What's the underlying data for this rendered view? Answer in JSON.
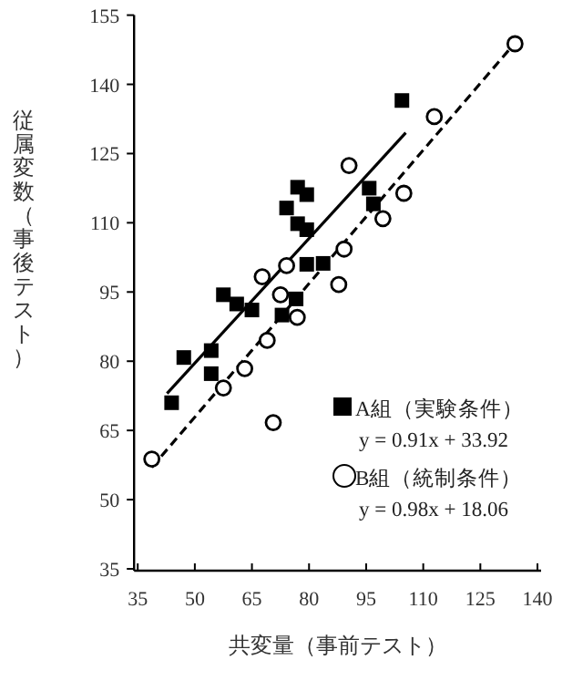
{
  "chart_data": {
    "type": "scatter",
    "xlabel": "共変量（事前テスト）",
    "ylabel": "従属変数（事後テスト）",
    "xlim": [
      35,
      140
    ],
    "xticks": [
      35,
      50,
      65,
      80,
      95,
      110,
      125,
      140
    ],
    "ylim": [
      35,
      155
    ],
    "yticks": [
      35,
      50,
      65,
      80,
      95,
      110,
      125,
      140,
      155
    ],
    "grid": false,
    "legend": "bottom right",
    "annotations": [
      "y = 0.91x + 33.92",
      "y = 0.98x + 18.06"
    ],
    "series": [
      {
        "name": "A組（実験条件）",
        "type": "scatter",
        "marker": "square",
        "color": "#000000",
        "x": [
          43.9,
          47.1,
          54.3,
          54.3,
          57.5,
          61.0,
          65.0,
          72.9,
          76.6,
          74.1,
          77.0,
          79.4,
          77.0,
          79.4,
          79.4,
          83.7,
          104.4,
          95.8,
          96.9
        ],
        "values": [
          71.0,
          80.8,
          82.3,
          77.3,
          94.4,
          92.4,
          91.1,
          90.0,
          93.5,
          113.2,
          117.7,
          116.1,
          109.8,
          108.5,
          101.0,
          101.2,
          136.5,
          117.5,
          114.1
        ]
      },
      {
        "name": "B組（統制条件）",
        "type": "scatter",
        "marker": "circle",
        "color": "#000000",
        "x": [
          38.7,
          57.5,
          63.1,
          69.0,
          70.6,
          72.5,
          76.9,
          67.7,
          87.8,
          74.1,
          90.5,
          89.2,
          134.1,
          112.9,
          104.9,
          99.4
        ],
        "values": [
          58.8,
          74.2,
          78.4,
          84.5,
          66.7,
          94.4,
          89.5,
          98.3,
          96.6,
          100.7,
          122.4,
          104.3,
          148.8,
          133.0,
          116.4,
          110.9
        ]
      },
      {
        "type": "line",
        "line_style": "solid",
        "color": "#000000",
        "x": [
          42.7,
          105.4
        ],
        "values": [
          73.0,
          129.5
        ]
      },
      {
        "type": "line",
        "line_style": "dashed",
        "color": "#000000",
        "x": [
          38.7,
          134.1
        ],
        "values": [
          57.0,
          149.0
        ]
      }
    ]
  }
}
